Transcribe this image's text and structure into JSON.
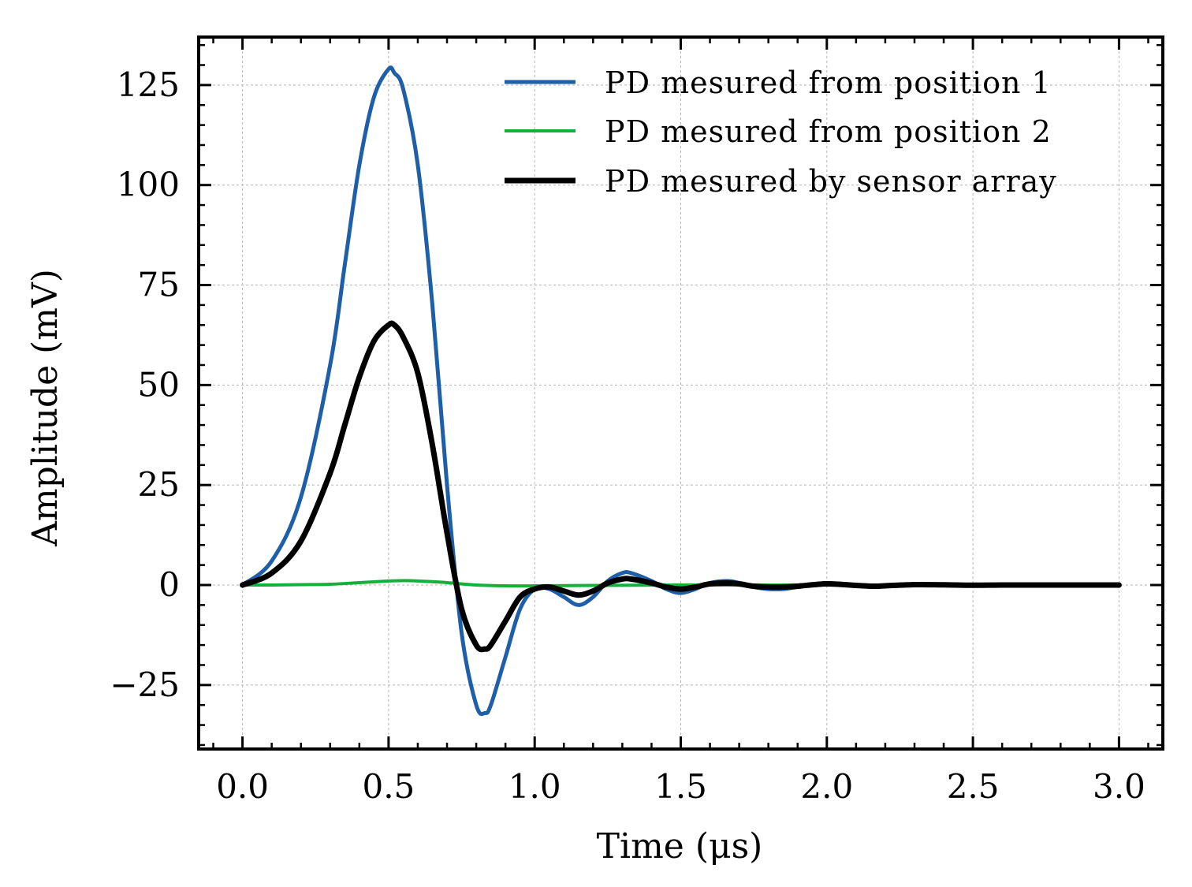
{
  "chart_data": {
    "type": "line",
    "title": "",
    "xlabel": "Time (μs)",
    "ylabel": "Amplitude (mV)",
    "xlim": [
      -0.15,
      3.15
    ],
    "ylim": [
      -41,
      137
    ],
    "xticks": [
      0.0,
      0.5,
      1.0,
      1.5,
      2.0,
      2.5,
      3.0
    ],
    "xtick_labels": [
      "0.0",
      "0.5",
      "1.0",
      "1.5",
      "2.0",
      "2.5",
      "3.0"
    ],
    "yticks": [
      -25,
      0,
      25,
      50,
      75,
      100,
      125
    ],
    "ytick_labels": [
      "−25",
      "0",
      "25",
      "50",
      "75",
      "100",
      "125"
    ],
    "grid": true,
    "legend_position": "top-right",
    "series": [
      {
        "name": "PD mesured from position 1",
        "color": "#1f5fa8",
        "x": [
          0.0,
          0.1,
          0.2,
          0.3,
          0.35,
          0.4,
          0.45,
          0.5,
          0.52,
          0.55,
          0.6,
          0.65,
          0.7,
          0.75,
          0.8,
          0.83,
          0.85,
          0.9,
          0.95,
          1.0,
          1.05,
          1.1,
          1.15,
          1.2,
          1.25,
          1.3,
          1.33,
          1.4,
          1.45,
          1.5,
          1.55,
          1.6,
          1.66,
          1.7,
          1.75,
          1.8,
          1.85,
          1.9,
          2.0,
          2.1,
          2.16,
          2.2,
          2.3,
          2.4,
          2.5,
          2.6,
          2.7,
          2.8,
          2.9,
          3.0
        ],
        "values": [
          0,
          6,
          22,
          55,
          80,
          105,
          122,
          129,
          128,
          124,
          105,
          70,
          25,
          -12,
          -30,
          -32,
          -30,
          -18,
          -6,
          -1,
          -1,
          -3,
          -5,
          -3,
          1,
          3,
          3,
          1,
          -1,
          -2,
          -1,
          0.5,
          1,
          0.5,
          -0.5,
          -1,
          -1,
          -0.5,
          0.5,
          -0.2,
          -0.5,
          -0.3,
          0.2,
          0.1,
          -0.1,
          0,
          0,
          0,
          0,
          0
        ]
      },
      {
        "name": "PD mesured from position 2",
        "color": "#13b03c",
        "x": [
          0.0,
          0.1,
          0.2,
          0.3,
          0.4,
          0.5,
          0.55,
          0.6,
          0.7,
          0.8,
          0.9,
          1.0,
          1.2,
          1.5,
          1.8,
          2.0,
          2.5,
          3.0
        ],
        "values": [
          0,
          0,
          0.1,
          0.2,
          0.6,
          1.0,
          1.1,
          1.0,
          0.6,
          0,
          -0.2,
          -0.2,
          -0.1,
          0,
          0,
          0,
          0,
          0
        ]
      },
      {
        "name": "PD mesured by sensor array",
        "color": "#000000",
        "x": [
          0.0,
          0.1,
          0.2,
          0.3,
          0.35,
          0.4,
          0.45,
          0.5,
          0.52,
          0.55,
          0.6,
          0.65,
          0.7,
          0.75,
          0.8,
          0.83,
          0.85,
          0.9,
          0.95,
          1.0,
          1.05,
          1.1,
          1.15,
          1.2,
          1.25,
          1.3,
          1.33,
          1.4,
          1.45,
          1.5,
          1.55,
          1.6,
          1.66,
          1.7,
          1.75,
          1.8,
          1.85,
          1.9,
          2.0,
          2.1,
          2.16,
          2.2,
          2.3,
          2.4,
          2.5,
          2.6,
          2.7,
          2.8,
          2.9,
          3.0
        ],
        "values": [
          0,
          3,
          11,
          28,
          40,
          52,
          61,
          65,
          65,
          62,
          53,
          35,
          13,
          -6,
          -15,
          -16,
          -15,
          -9,
          -3,
          -1,
          -0.5,
          -1.5,
          -2.5,
          -1.5,
          0.5,
          1.5,
          1.5,
          0.5,
          -0.5,
          -1,
          -0.5,
          0.3,
          0.5,
          0.3,
          -0.3,
          -0.5,
          -0.5,
          -0.3,
          0.3,
          -0.1,
          -0.3,
          -0.2,
          0.1,
          0.05,
          -0.05,
          0,
          0,
          0,
          0,
          0
        ]
      }
    ]
  }
}
